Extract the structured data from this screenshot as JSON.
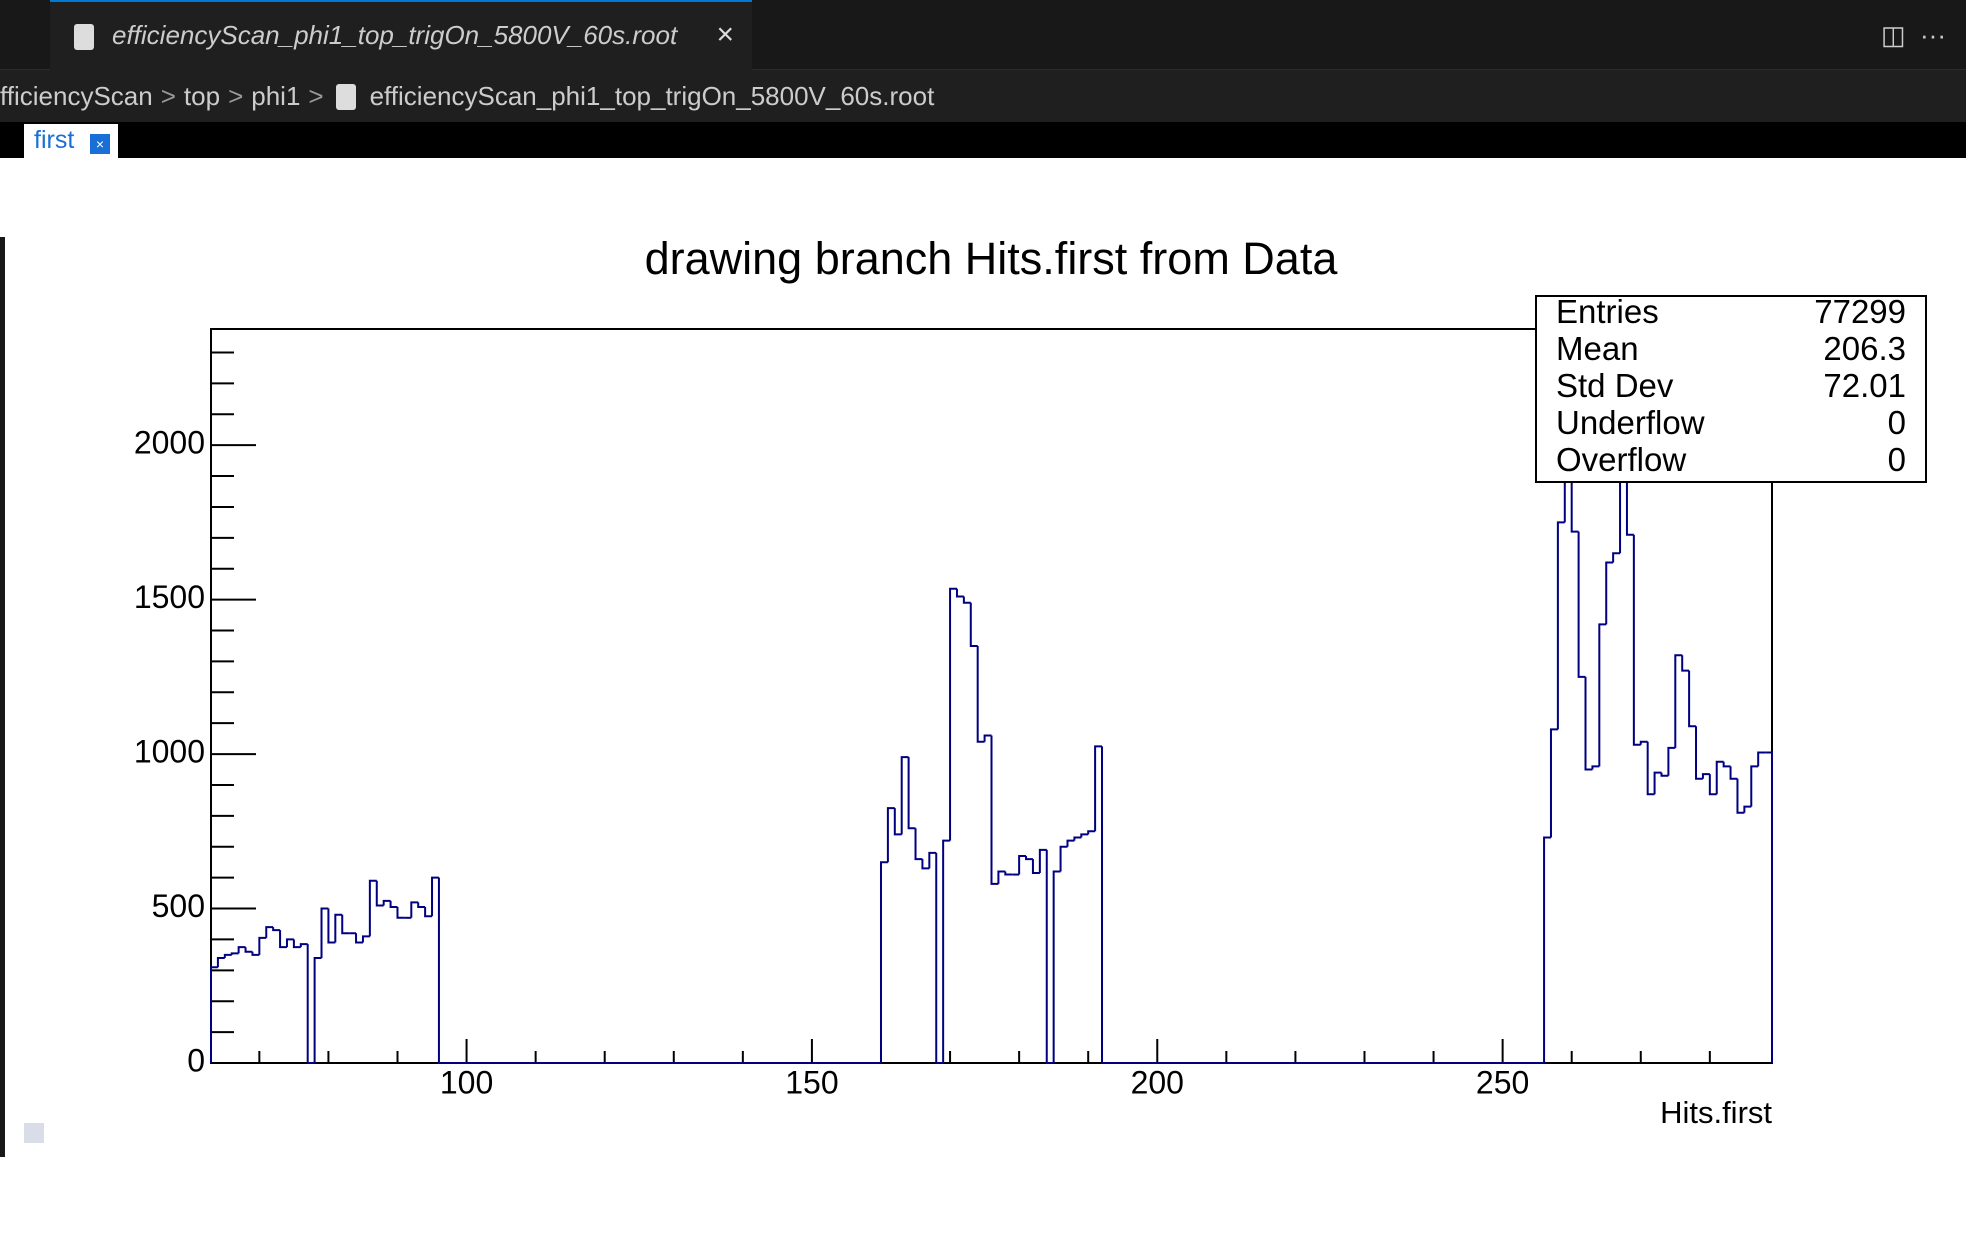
{
  "tab": {
    "title": "efficiencyScan_phi1_top_trigOn_5800V_60s.root"
  },
  "breadcrumb": [
    "fficiencyScan",
    "top",
    "phi1",
    "efficiencyScan_phi1_top_trigOn_5800V_60s.root"
  ],
  "canvas_tab": "first",
  "chart_data": {
    "type": "histogram",
    "title": "drawing branch Hits.first from Data",
    "xlabel": "Hits.first",
    "color": "#000080",
    "bins": [
      63,
      64,
      65,
      66,
      67,
      68,
      69,
      70,
      71,
      72,
      73,
      74,
      75,
      76,
      77,
      78,
      79,
      80,
      81,
      82,
      83,
      84,
      85,
      86,
      87,
      88,
      89,
      90,
      91,
      92,
      93,
      94,
      95,
      96,
      97,
      98,
      99,
      100,
      101,
      102,
      103,
      104,
      105,
      106,
      107,
      108,
      109,
      110,
      111,
      112,
      113,
      114,
      115,
      116,
      117,
      118,
      119,
      120,
      121,
      122,
      123,
      124,
      125,
      126,
      127,
      128,
      129,
      130,
      131,
      132,
      133,
      134,
      135,
      136,
      137,
      138,
      139,
      140,
      141,
      142,
      143,
      144,
      145,
      146,
      147,
      148,
      149,
      150,
      151,
      152,
      153,
      154,
      155,
      156,
      157,
      158,
      159,
      160,
      161,
      162,
      163,
      164,
      165,
      166,
      167,
      168,
      169,
      170,
      171,
      172,
      173,
      174,
      175,
      176,
      177,
      178,
      179,
      180,
      181,
      182,
      183,
      184,
      185,
      186,
      187,
      188,
      189,
      190,
      191,
      192,
      193,
      194,
      195,
      196,
      197,
      198,
      199,
      200,
      201,
      202,
      203,
      204,
      205,
      206,
      207,
      208,
      209,
      210,
      211,
      212,
      213,
      214,
      215,
      216,
      217,
      218,
      219,
      220,
      221,
      222,
      223,
      224,
      225,
      226,
      227,
      228,
      229,
      230,
      231,
      232,
      233,
      234,
      235,
      236,
      237,
      238,
      239,
      240,
      241,
      242,
      243,
      244,
      245,
      246,
      247,
      248,
      249,
      250,
      251,
      252,
      253,
      254,
      255,
      256,
      257,
      258,
      259,
      260,
      261,
      262,
      263,
      264,
      265,
      266,
      267,
      268,
      269,
      270,
      271,
      272,
      273,
      274,
      275,
      276,
      277,
      278,
      279,
      280,
      281,
      282,
      283,
      284,
      285,
      286,
      287,
      288,
      289
    ],
    "values": [
      310,
      340,
      350,
      355,
      375,
      360,
      350,
      405,
      440,
      430,
      375,
      400,
      375,
      385,
      0,
      340,
      500,
      390,
      480,
      420,
      420,
      390,
      410,
      590,
      510,
      525,
      505,
      470,
      470,
      520,
      505,
      475,
      600,
      0,
      0,
      0,
      0,
      0,
      0,
      0,
      0,
      0,
      0,
      0,
      0,
      0,
      0,
      0,
      0,
      0,
      0,
      0,
      0,
      0,
      0,
      0,
      0,
      0,
      0,
      0,
      0,
      0,
      0,
      0,
      0,
      0,
      0,
      0,
      0,
      0,
      0,
      0,
      0,
      0,
      0,
      0,
      0,
      0,
      0,
      0,
      0,
      0,
      0,
      0,
      0,
      0,
      0,
      0,
      0,
      0,
      0,
      0,
      0,
      0,
      0,
      0,
      0,
      650,
      825,
      740,
      990,
      760,
      660,
      630,
      680,
      0,
      720,
      1535,
      1510,
      1490,
      1350,
      1040,
      1060,
      580,
      620,
      610,
      610,
      670,
      660,
      615,
      690,
      0,
      620,
      700,
      720,
      730,
      740,
      750,
      1025,
      0,
      0,
      0,
      0,
      0,
      0,
      0,
      0,
      0,
      0,
      0,
      0,
      0,
      0,
      0,
      0,
      0,
      0,
      0,
      0,
      0,
      0,
      0,
      0,
      0,
      0,
      0,
      0,
      0,
      0,
      0,
      0,
      0,
      0,
      0,
      0,
      0,
      0,
      0,
      0,
      0,
      0,
      0,
      0,
      0,
      0,
      0,
      0,
      0,
      0,
      0,
      0,
      0,
      0,
      0,
      0,
      0,
      0,
      0,
      0,
      0,
      0,
      0,
      0,
      730,
      1080,
      1750,
      2100,
      1720,
      1250,
      950,
      960,
      1420,
      1620,
      1650,
      2150,
      1710,
      1030,
      1040,
      870,
      940,
      930,
      1020,
      1320,
      1270,
      1090,
      920,
      935,
      870,
      975,
      960,
      920,
      810,
      830,
      960,
      1005,
      1005
    ],
    "xlim": [
      63,
      289
    ],
    "ylim": [
      0,
      2376
    ],
    "xticks": [
      100,
      150,
      200,
      250
    ],
    "yticks": [
      0,
      500,
      1000,
      1500,
      2000
    ],
    "xminorticks": [
      70,
      80,
      90,
      110,
      120,
      130,
      140,
      160,
      170,
      180,
      190,
      210,
      220,
      230,
      240,
      260,
      270,
      280
    ],
    "yminorticks": [
      100,
      200,
      300,
      400,
      600,
      700,
      800,
      900,
      1100,
      1200,
      1300,
      1400,
      1600,
      1700,
      1800,
      1900,
      2100,
      2200,
      2300
    ],
    "stats": [
      {
        "label": "Entries",
        "value": 77299
      },
      {
        "label": "Mean",
        "value": 206.3
      },
      {
        "label": "Std Dev",
        "value": 72.01
      },
      {
        "label": "Underflow",
        "value": 0
      },
      {
        "label": "Overflow",
        "value": 0
      }
    ]
  }
}
